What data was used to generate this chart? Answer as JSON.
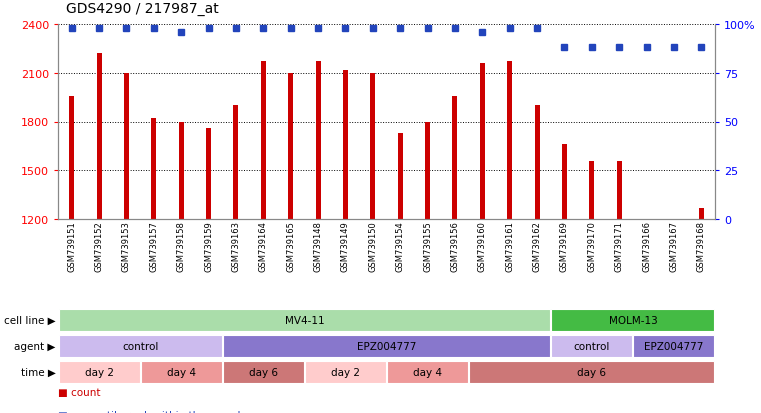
{
  "title": "GDS4290 / 217987_at",
  "samples": [
    "GSM739151",
    "GSM739152",
    "GSM739153",
    "GSM739157",
    "GSM739158",
    "GSM739159",
    "GSM739163",
    "GSM739164",
    "GSM739165",
    "GSM739148",
    "GSM739149",
    "GSM739150",
    "GSM739154",
    "GSM739155",
    "GSM739156",
    "GSM739160",
    "GSM739161",
    "GSM739162",
    "GSM739169",
    "GSM739170",
    "GSM739171",
    "GSM739166",
    "GSM739167",
    "GSM739168"
  ],
  "counts": [
    1960,
    2220,
    2100,
    1820,
    1800,
    1760,
    1900,
    2170,
    2100,
    2175,
    2120,
    2100,
    1730,
    1800,
    1960,
    2160,
    2170,
    1900,
    1660,
    1560,
    1560,
    1200,
    1200,
    1270
  ],
  "percentile_ranks": [
    98,
    98,
    98,
    98,
    96,
    98,
    98,
    98,
    98,
    98,
    98,
    98,
    98,
    98,
    98,
    96,
    98,
    98,
    88,
    88,
    88,
    88,
    88,
    88
  ],
  "ylim_left": [
    1200,
    2400
  ],
  "ylim_right": [
    0,
    100
  ],
  "yticks_left": [
    1200,
    1500,
    1800,
    2100,
    2400
  ],
  "yticks_right": [
    0,
    25,
    50,
    75,
    100
  ],
  "bar_color": "#cc0000",
  "dot_color": "#2244bb",
  "background_color": "#ffffff",
  "cell_lines": [
    {
      "label": "MV4-11",
      "start": 0,
      "end": 18,
      "color": "#aaddaa"
    },
    {
      "label": "MOLM-13",
      "start": 18,
      "end": 24,
      "color": "#44bb44"
    }
  ],
  "agents": [
    {
      "label": "control",
      "start": 0,
      "end": 6,
      "color": "#ccbbee"
    },
    {
      "label": "EPZ004777",
      "start": 6,
      "end": 18,
      "color": "#8877cc"
    },
    {
      "label": "control",
      "start": 18,
      "end": 21,
      "color": "#ccbbee"
    },
    {
      "label": "EPZ004777",
      "start": 21,
      "end": 24,
      "color": "#8877cc"
    }
  ],
  "times": [
    {
      "label": "day 2",
      "start": 0,
      "end": 3,
      "color": "#ffcccc"
    },
    {
      "label": "day 4",
      "start": 3,
      "end": 6,
      "color": "#ee9999"
    },
    {
      "label": "day 6",
      "start": 6,
      "end": 9,
      "color": "#cc7777"
    },
    {
      "label": "day 2",
      "start": 9,
      "end": 12,
      "color": "#ffcccc"
    },
    {
      "label": "day 4",
      "start": 12,
      "end": 15,
      "color": "#ee9999"
    },
    {
      "label": "day 6",
      "start": 15,
      "end": 24,
      "color": "#cc7777"
    }
  ]
}
